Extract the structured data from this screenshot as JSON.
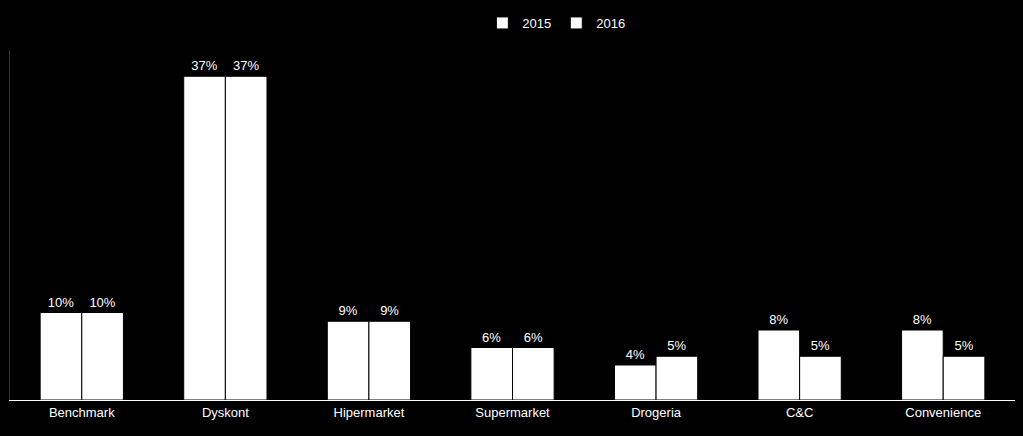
{
  "chart_data": {
    "type": "bar",
    "categories": [
      "Benchmark",
      "Dyskont",
      "Hipermarket",
      "Supermarket",
      "Drogeria",
      "C&C",
      "Convenience"
    ],
    "series": [
      {
        "name": "2015",
        "color": "#ffffff",
        "values": [
          10,
          37,
          9,
          6,
          4,
          8,
          8
        ],
        "value_labels": [
          "10%",
          "37%",
          "9%",
          "6%",
          "4%",
          "8%",
          "8%"
        ]
      },
      {
        "name": "2016",
        "color": "#ffffff",
        "values": [
          10,
          37,
          9,
          6,
          5,
          5,
          5
        ],
        "value_labels": [
          "10%",
          "37%",
          "9%",
          "6%",
          "5%",
          "5%",
          "5%"
        ]
      }
    ],
    "ylim": [
      0,
      40
    ],
    "data_labels": true,
    "tick_labels": "x",
    "legend": "top",
    "grid": false
  }
}
